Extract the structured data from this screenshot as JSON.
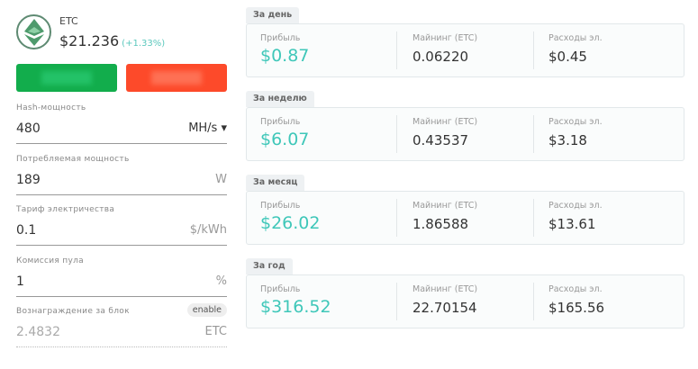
{
  "coin": {
    "symbol": "ETC",
    "price": "$21.236",
    "change": "(+1.33%)",
    "icon": "ethereum-classic-logo"
  },
  "buttons": {
    "buy_color": "#12ad4c",
    "sell_color": "#fd4a2a"
  },
  "fields": [
    {
      "label": "Hash-мощность",
      "value": "480",
      "unit": "MH/s ▾"
    },
    {
      "label": "Потребляемая мощность",
      "value": "189",
      "unit": "W"
    },
    {
      "label": "Тариф электричества",
      "value": "0.1",
      "unit": "$/kWh"
    },
    {
      "label": "Комиссия пула",
      "value": "1",
      "unit": "%"
    },
    {
      "label": "Вознаграждение за блок",
      "value": "2.4832",
      "unit": "ETC",
      "toggle": "enable"
    }
  ],
  "columns": {
    "profit": "Прибыль",
    "mining": "Майнинг (ETC)",
    "expenses": "Расходы эл."
  },
  "periods": [
    {
      "title": "За день",
      "profit": "$0.87",
      "mining": "0.06220",
      "expenses": "$0.45"
    },
    {
      "title": "За неделю",
      "profit": "$6.07",
      "mining": "0.43537",
      "expenses": "$3.18"
    },
    {
      "title": "За месяц",
      "profit": "$26.02",
      "mining": "1.86588",
      "expenses": "$13.61"
    },
    {
      "title": "За год",
      "profit": "$316.52",
      "mining": "22.70154",
      "expenses": "$165.56"
    }
  ]
}
